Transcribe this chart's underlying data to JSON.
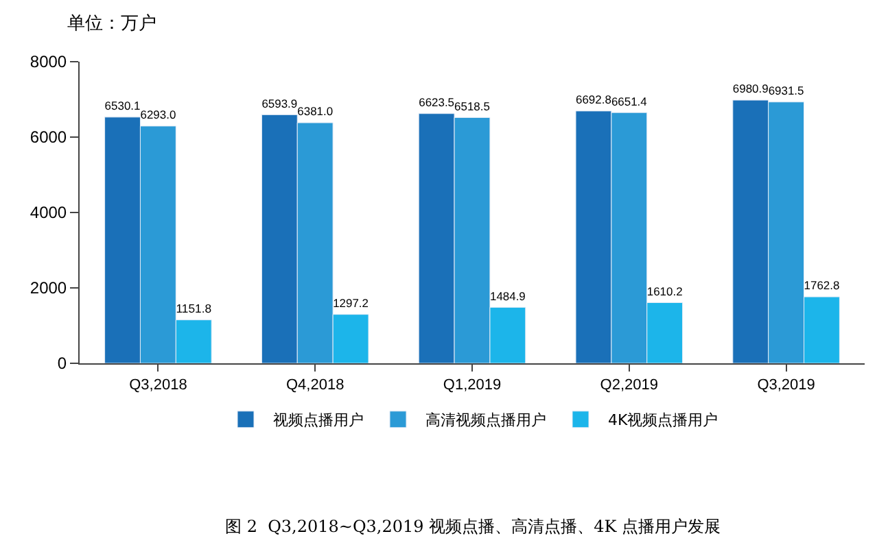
{
  "chart_data": {
    "type": "bar",
    "categories": [
      "Q3,2018",
      "Q4,2018",
      "Q1,2019",
      "Q2,2019",
      "Q3,2019"
    ],
    "series": [
      {
        "name": "视频点播用户",
        "color": "#1a70b8",
        "values": [
          6530.1,
          6593.9,
          6623.5,
          6692.8,
          6980.9
        ],
        "value_labels": [
          "6530.1",
          "6593.9",
          "6623.5",
          "6692.8",
          "6980.9"
        ]
      },
      {
        "name": "高清视频点播用户",
        "color": "#2b9ad6",
        "values": [
          6293.0,
          6381.0,
          6518.5,
          6651.4,
          6931.5
        ],
        "value_labels": [
          "6293.0",
          "6381.0",
          "6518.5",
          "6651.4",
          "6931.5"
        ]
      },
      {
        "name": "4K视频点播用户",
        "color": "#1cb5ea",
        "values": [
          1151.8,
          1297.2,
          1484.9,
          1610.2,
          1762.8
        ],
        "value_labels": [
          "1151.8",
          "1297.2",
          "1484.9",
          "1610.2",
          "1762.8"
        ]
      }
    ],
    "ylim": [
      0,
      8000
    ],
    "yticks": [
      0,
      2000,
      4000,
      6000,
      8000
    ],
    "legend": "bottom",
    "annotations": [
      "单位：万户",
      "图 2  Q3,2018~Q3,2019 视频点播、高清点播、4K 点播用户发展"
    ]
  }
}
